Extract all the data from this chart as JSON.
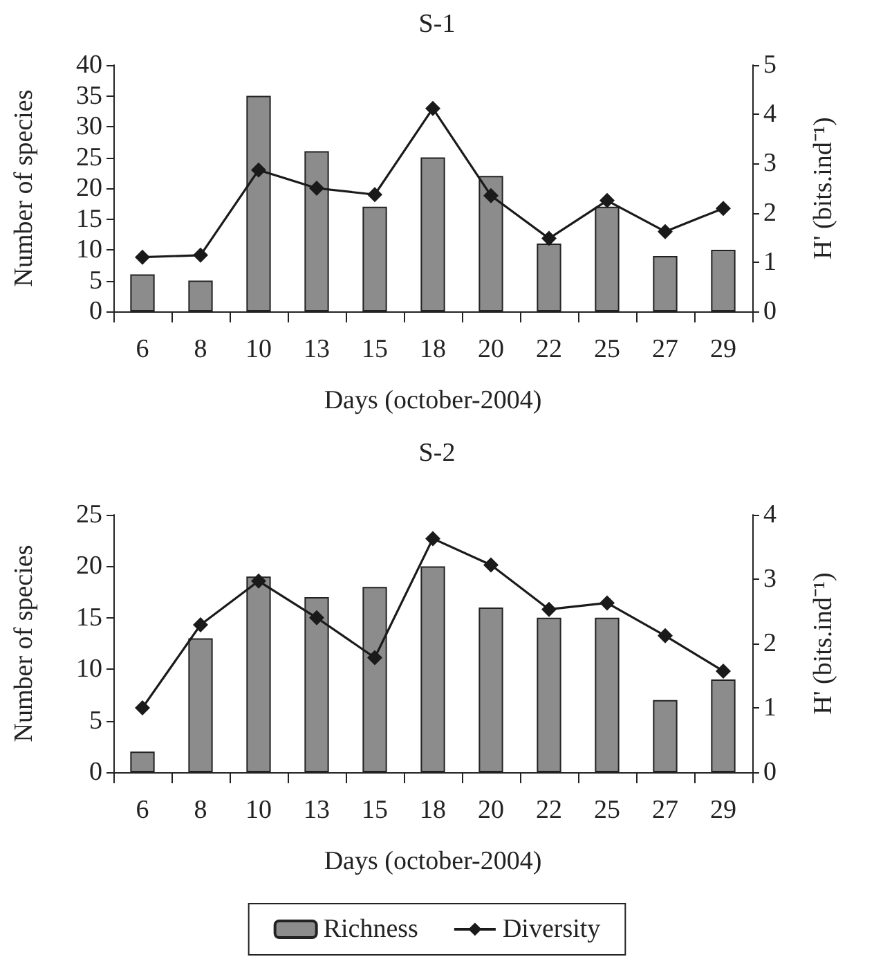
{
  "chart_data": [
    {
      "type": "bar",
      "title": "S-1",
      "xlabel": "Days (october-2004)",
      "ylabel": "Number of species",
      "y2label": "H' (bits.ind⁻¹)",
      "categories": [
        "6",
        "8",
        "10",
        "13",
        "15",
        "18",
        "20",
        "22",
        "25",
        "27",
        "29"
      ],
      "series": [
        {
          "color": "#8c8c8c",
          "values": [
            6,
            5,
            35,
            26,
            17,
            25,
            22,
            11,
            17,
            9,
            10
          ]
        },
        {
          "type": "line",
          "axis": "y2",
          "color": "#1a1a1a",
          "marker": "diamond",
          "values": [
            1.1,
            1.14,
            2.87,
            2.5,
            2.37,
            4.12,
            2.35,
            1.48,
            2.25,
            1.62,
            2.09
          ]
        }
      ],
      "ylim": [
        0,
        40
      ],
      "yticks": [
        0,
        5,
        10,
        15,
        20,
        25,
        30,
        35,
        40
      ],
      "y2lim": [
        0,
        5
      ],
      "y2ticks": [
        0,
        1,
        2,
        3,
        4,
        5
      ],
      "grid": false,
      "legend": false
    },
    {
      "type": "bar",
      "title": "S-2",
      "xlabel": "Days (october-2004)",
      "ylabel": "Number of species",
      "y2label": "H' (bits.ind⁻¹)",
      "categories": [
        "6",
        "8",
        "10",
        "13",
        "15",
        "18",
        "20",
        "22",
        "25",
        "27",
        "29"
      ],
      "series": [
        {
          "name": "Richness",
          "color": "#8c8c8c",
          "values": [
            2,
            13,
            19,
            17,
            18,
            20,
            16,
            15,
            15,
            7,
            9
          ]
        },
        {
          "name": "Diversity",
          "type": "line",
          "axis": "y2",
          "color": "#1a1a1a",
          "marker": "diamond",
          "values": [
            1.0,
            2.29,
            2.97,
            2.4,
            1.78,
            3.63,
            3.22,
            2.53,
            2.63,
            2.12,
            1.57
          ]
        }
      ],
      "ylim": [
        0,
        25
      ],
      "yticks": [
        0,
        5,
        10,
        15,
        20,
        25
      ],
      "y2lim": [
        0,
        4
      ],
      "y2ticks": [
        0,
        1,
        2,
        3,
        4
      ],
      "grid": false,
      "legend": "bottom"
    }
  ]
}
